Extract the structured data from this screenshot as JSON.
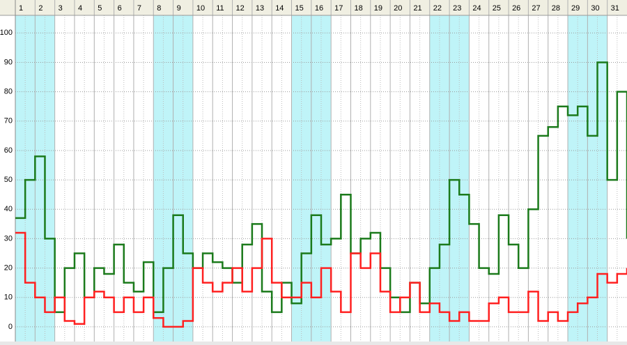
{
  "chart_data": {
    "type": "line",
    "step": true,
    "x": [
      1,
      1.5,
      2,
      2.5,
      3,
      3.5,
      4,
      4.5,
      5,
      5.5,
      6,
      6.5,
      7,
      7.5,
      8,
      8.5,
      9,
      9.5,
      10,
      10.5,
      11,
      11.5,
      12,
      12.5,
      13,
      13.5,
      14,
      14.5,
      15,
      15.5,
      16,
      16.5,
      17,
      17.5,
      18,
      18.5,
      19,
      19.5,
      20,
      20.5,
      21,
      21.5,
      22,
      22.5,
      23,
      23.5,
      24,
      24.5,
      25,
      25.5,
      26,
      26.5,
      27,
      27.5,
      28,
      28.5,
      29,
      29.5,
      30,
      30.5,
      31,
      31.5,
      32
    ],
    "series": [
      {
        "color": "#1b7a1b",
        "values": [
          37,
          50,
          58,
          30,
          5,
          20,
          25,
          10,
          20,
          18,
          28,
          15,
          12,
          22,
          5,
          20,
          38,
          25,
          20,
          25,
          22,
          20,
          15,
          28,
          35,
          12,
          5,
          15,
          8,
          25,
          38,
          28,
          30,
          45,
          25,
          30,
          32,
          20,
          10,
          5,
          15,
          8,
          20,
          28,
          50,
          45,
          35,
          20,
          18,
          38,
          28,
          20,
          40,
          65,
          68,
          75,
          72,
          75,
          65,
          90,
          50,
          80,
          30
        ]
      },
      {
        "color": "#ff2020",
        "values": [
          32,
          15,
          10,
          5,
          10,
          2,
          1,
          10,
          12,
          10,
          5,
          10,
          5,
          10,
          3,
          0,
          0,
          2,
          20,
          15,
          12,
          15,
          20,
          12,
          20,
          30,
          15,
          10,
          10,
          15,
          10,
          20,
          12,
          5,
          25,
          20,
          25,
          12,
          5,
          10,
          15,
          5,
          8,
          5,
          2,
          5,
          2,
          2,
          8,
          10,
          5,
          5,
          12,
          2,
          5,
          2,
          5,
          8,
          10,
          18,
          15,
          18,
          20
        ]
      }
    ],
    "xlim": [
      1,
      32
    ],
    "xticks": [
      1,
      2,
      3,
      4,
      5,
      6,
      7,
      8,
      9,
      10,
      11,
      12,
      13,
      14,
      15,
      16,
      17,
      18,
      19,
      20,
      21,
      22,
      23,
      24,
      25,
      26,
      27,
      28,
      29,
      30,
      31
    ],
    "ylim": [
      -5,
      106
    ],
    "yticks": [
      0,
      10,
      20,
      30,
      40,
      50,
      60,
      70,
      80,
      90,
      100
    ],
    "grid": true,
    "highlight_days": [
      1,
      2,
      8,
      9,
      15,
      16,
      22,
      23,
      29,
      30
    ],
    "highlight_color": "#bff4f8"
  }
}
